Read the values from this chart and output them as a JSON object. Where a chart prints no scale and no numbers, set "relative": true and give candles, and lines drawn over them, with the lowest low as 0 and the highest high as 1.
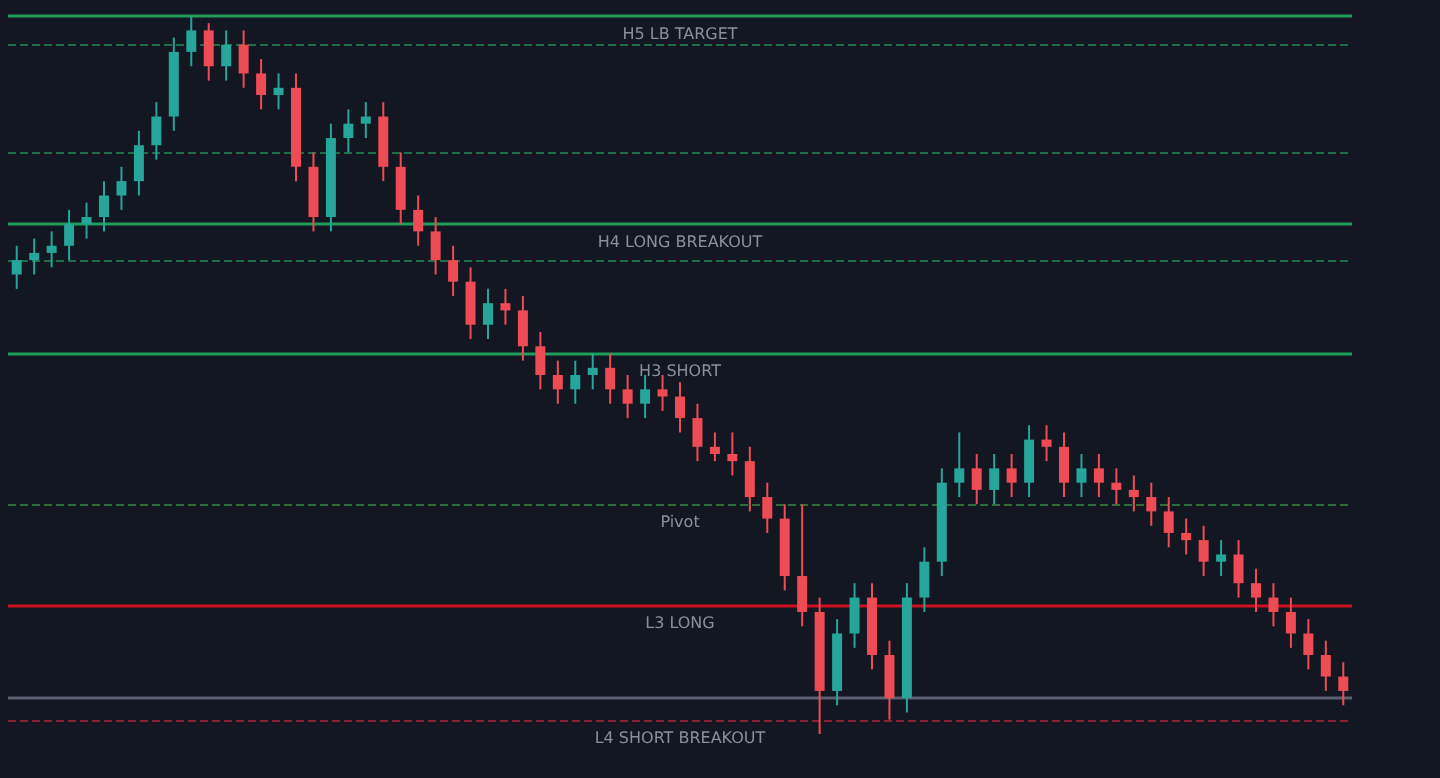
{
  "chart_data": {
    "type": "candlestick",
    "relative": true,
    "grid": false,
    "categories": [
      null,
      null,
      null,
      null,
      null,
      null,
      null,
      null,
      null,
      null,
      null,
      null,
      null,
      null,
      null,
      null,
      null,
      null,
      null,
      null,
      null,
      null,
      null,
      null,
      null,
      null,
      null,
      null,
      null,
      null,
      null,
      null,
      null,
      null,
      null,
      null,
      null,
      null,
      null,
      null,
      null,
      null,
      null,
      null,
      null,
      null,
      null,
      null,
      null,
      null,
      null,
      null,
      null,
      null,
      null,
      null,
      null,
      null,
      null,
      null,
      null,
      null,
      null,
      null,
      null,
      null,
      null,
      null,
      null,
      null,
      null,
      null,
      null,
      null,
      null,
      null,
      null
    ],
    "ohlc": [
      [
        0.64,
        0.68,
        0.62,
        0.66
      ],
      [
        0.66,
        0.69,
        0.64,
        0.67
      ],
      [
        0.67,
        0.7,
        0.65,
        0.68
      ],
      [
        0.68,
        0.73,
        0.66,
        0.71
      ],
      [
        0.71,
        0.74,
        0.69,
        0.72
      ],
      [
        0.72,
        0.77,
        0.7,
        0.75
      ],
      [
        0.75,
        0.79,
        0.73,
        0.77
      ],
      [
        0.77,
        0.84,
        0.75,
        0.82
      ],
      [
        0.82,
        0.88,
        0.8,
        0.86
      ],
      [
        0.86,
        0.97,
        0.84,
        0.95
      ],
      [
        0.95,
        1.0,
        0.93,
        0.98
      ],
      [
        0.98,
        0.99,
        0.91,
        0.93
      ],
      [
        0.93,
        0.98,
        0.91,
        0.96
      ],
      [
        0.96,
        0.98,
        0.9,
        0.92
      ],
      [
        0.92,
        0.94,
        0.87,
        0.89
      ],
      [
        0.89,
        0.92,
        0.87,
        0.9
      ],
      [
        0.9,
        0.92,
        0.77,
        0.79
      ],
      [
        0.79,
        0.81,
        0.7,
        0.72
      ],
      [
        0.72,
        0.85,
        0.7,
        0.83
      ],
      [
        0.83,
        0.87,
        0.81,
        0.85
      ],
      [
        0.85,
        0.88,
        0.83,
        0.86
      ],
      [
        0.86,
        0.88,
        0.77,
        0.79
      ],
      [
        0.79,
        0.81,
        0.71,
        0.73
      ],
      [
        0.73,
        0.75,
        0.68,
        0.7
      ],
      [
        0.7,
        0.72,
        0.64,
        0.66
      ],
      [
        0.66,
        0.68,
        0.61,
        0.63
      ],
      [
        0.63,
        0.65,
        0.55,
        0.57
      ],
      [
        0.57,
        0.62,
        0.55,
        0.6
      ],
      [
        0.6,
        0.62,
        0.57,
        0.59
      ],
      [
        0.59,
        0.61,
        0.52,
        0.54
      ],
      [
        0.54,
        0.56,
        0.48,
        0.5
      ],
      [
        0.5,
        0.52,
        0.46,
        0.48
      ],
      [
        0.48,
        0.52,
        0.46,
        0.5
      ],
      [
        0.5,
        0.53,
        0.48,
        0.51
      ],
      [
        0.51,
        0.53,
        0.46,
        0.48
      ],
      [
        0.48,
        0.5,
        0.44,
        0.46
      ],
      [
        0.46,
        0.5,
        0.44,
        0.48
      ],
      [
        0.48,
        0.5,
        0.45,
        0.47
      ],
      [
        0.47,
        0.49,
        0.42,
        0.44
      ],
      [
        0.44,
        0.46,
        0.38,
        0.4
      ],
      [
        0.4,
        0.42,
        0.38,
        0.39
      ],
      [
        0.39,
        0.42,
        0.36,
        0.38
      ],
      [
        0.38,
        0.4,
        0.31,
        0.33
      ],
      [
        0.33,
        0.35,
        0.28,
        0.3
      ],
      [
        0.3,
        0.32,
        0.2,
        0.22
      ],
      [
        0.22,
        0.32,
        0.15,
        0.17
      ],
      [
        0.17,
        0.19,
        0.0,
        0.06
      ],
      [
        0.06,
        0.16,
        0.04,
        0.14
      ],
      [
        0.14,
        0.21,
        0.12,
        0.19
      ],
      [
        0.19,
        0.21,
        0.09,
        0.11
      ],
      [
        0.11,
        0.13,
        0.02,
        0.05
      ],
      [
        0.05,
        0.21,
        0.03,
        0.19
      ],
      [
        0.19,
        0.26,
        0.17,
        0.24
      ],
      [
        0.24,
        0.37,
        0.22,
        0.35
      ],
      [
        0.35,
        0.42,
        0.33,
        0.37
      ],
      [
        0.37,
        0.39,
        0.32,
        0.34
      ],
      [
        0.34,
        0.39,
        0.32,
        0.37
      ],
      [
        0.37,
        0.39,
        0.33,
        0.35
      ],
      [
        0.35,
        0.43,
        0.33,
        0.41
      ],
      [
        0.41,
        0.43,
        0.38,
        0.4
      ],
      [
        0.4,
        0.42,
        0.33,
        0.35
      ],
      [
        0.35,
        0.39,
        0.33,
        0.37
      ],
      [
        0.37,
        0.39,
        0.33,
        0.35
      ],
      [
        0.35,
        0.37,
        0.32,
        0.34
      ],
      [
        0.34,
        0.36,
        0.31,
        0.33
      ],
      [
        0.33,
        0.35,
        0.29,
        0.31
      ],
      [
        0.31,
        0.33,
        0.26,
        0.28
      ],
      [
        0.28,
        0.3,
        0.25,
        0.27
      ],
      [
        0.27,
        0.29,
        0.22,
        0.24
      ],
      [
        0.24,
        0.27,
        0.22,
        0.25
      ],
      [
        0.25,
        0.27,
        0.19,
        0.21
      ],
      [
        0.21,
        0.23,
        0.17,
        0.19
      ],
      [
        0.19,
        0.21,
        0.15,
        0.17
      ],
      [
        0.17,
        0.19,
        0.12,
        0.14
      ],
      [
        0.14,
        0.16,
        0.09,
        0.11
      ],
      [
        0.11,
        0.13,
        0.06,
        0.08
      ],
      [
        0.08,
        0.1,
        0.04,
        0.06
      ]
    ],
    "ref_lines": [
      {
        "axis": "y",
        "value": 1.0,
        "label": "H5 LB TARGET",
        "color": "#1e9e5a",
        "line_style": "solid"
      },
      {
        "axis": "y",
        "value": 0.96,
        "color": "#1e6e4a",
        "line_style": "dashed"
      },
      {
        "axis": "y",
        "value": 0.81,
        "color": "#1e6e4a",
        "line_style": "dashed"
      },
      {
        "axis": "y",
        "value": 0.71,
        "label": "H4 LONG BREAKOUT",
        "color": "#1e9e5a",
        "line_style": "solid"
      },
      {
        "axis": "y",
        "value": 0.66,
        "color": "#1e6e4a",
        "line_style": "dashed"
      },
      {
        "axis": "y",
        "value": 0.53,
        "label": "H3 SHORT",
        "color": "#1e9e5a",
        "line_style": "solid"
      },
      {
        "axis": "y",
        "value": 0.32,
        "label": "Pivot",
        "color": "#2e6e3a",
        "line_style": "dashed"
      },
      {
        "axis": "y",
        "value": 0.18,
        "label": "L3 LONG",
        "color": "#d01020",
        "line_style": "solid"
      },
      {
        "axis": "y",
        "value": 0.05,
        "color": "#5a6070",
        "line_style": "solid"
      },
      {
        "axis": "y",
        "value": 0.02,
        "label": "L4 SHORT BREAKOUT",
        "color": "#8a2030",
        "line_style": "dashed"
      }
    ]
  }
}
